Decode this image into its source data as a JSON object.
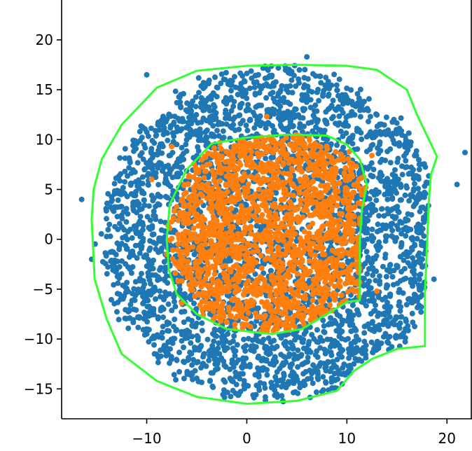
{
  "chart_data": {
    "type": "scatter",
    "title": "",
    "xlabel": "",
    "ylabel": "",
    "xlim": [
      -18.5,
      22.5
    ],
    "ylim": [
      -18,
      24
    ],
    "xticks": [
      -10,
      0,
      10,
      20
    ],
    "yticks": [
      -15,
      -10,
      -5,
      0,
      5,
      10,
      15,
      20
    ],
    "xtick_labels": [
      "−10",
      "0",
      "10",
      "20"
    ],
    "ytick_labels": [
      "−15",
      "−10",
      "−5",
      "0",
      "5",
      "10",
      "15",
      "20"
    ],
    "grid": false,
    "legend": "none",
    "series": [
      {
        "kind": "point-cloud",
        "color": "#1f77b4",
        "center": [
          2.5,
          0.5
        ],
        "spread": [
          8,
          8
        ],
        "count": 3500,
        "sample_points": [
          [
            -16.5,
            4
          ],
          [
            -15.5,
            -2
          ],
          [
            21.8,
            8.7
          ],
          [
            18.7,
            -4
          ],
          [
            21,
            5.5
          ],
          [
            3.6,
            -16.2
          ],
          [
            -10,
            16.5
          ],
          [
            6,
            18.3
          ]
        ]
      },
      {
        "kind": "point-cloud",
        "color": "#ff7f0e",
        "center": [
          3,
          0.5
        ],
        "spread": [
          5,
          5
        ],
        "count": 1800,
        "sample_points": [
          [
            -7.5,
            9.3
          ],
          [
            2,
            12.3
          ],
          [
            -9.5,
            6
          ],
          [
            12.5,
            8.4
          ],
          [
            13,
            -5.2
          ],
          [
            -8,
            -1.5
          ],
          [
            -6.5,
            -6.4
          ],
          [
            3,
            -9
          ]
        ]
      },
      {
        "kind": "boundary",
        "color": "#33ff33",
        "points": [
          [
            -15.5,
            2
          ],
          [
            -15.2,
            -4
          ],
          [
            -14,
            -8
          ],
          [
            -12.5,
            -11.5
          ],
          [
            -9,
            -14.2
          ],
          [
            -5,
            -15.8
          ],
          [
            0,
            -16.5
          ],
          [
            5,
            -16.2
          ],
          [
            9,
            -15.2
          ],
          [
            10.7,
            -13.2
          ],
          [
            12.5,
            -12
          ],
          [
            15,
            -11
          ],
          [
            17.8,
            -10.7
          ],
          [
            17.8,
            -5.5
          ],
          [
            18.2,
            4
          ],
          [
            18.4,
            6.5
          ],
          [
            19,
            8.3
          ],
          [
            17,
            12.5
          ],
          [
            16,
            15
          ],
          [
            13,
            17
          ],
          [
            10,
            17.4
          ],
          [
            5,
            17.5
          ],
          [
            0,
            17.4
          ],
          [
            -5,
            16.9
          ],
          [
            -9,
            15.2
          ],
          [
            -12.5,
            11.5
          ],
          [
            -14.5,
            8
          ],
          [
            -15.3,
            5
          ],
          [
            -15.5,
            2
          ]
        ]
      },
      {
        "kind": "boundary",
        "color": "#33ff33",
        "points": [
          [
            -8,
            0
          ],
          [
            -7.8,
            -3
          ],
          [
            -7,
            -5.5
          ],
          [
            -5,
            -7.5
          ],
          [
            -2,
            -9
          ],
          [
            2.5,
            -9.5
          ],
          [
            5.5,
            -9
          ],
          [
            8,
            -7.5
          ],
          [
            10,
            -6.3
          ],
          [
            11.3,
            -6.1
          ],
          [
            11.3,
            0
          ],
          [
            11.5,
            3
          ],
          [
            12,
            5.5
          ],
          [
            11.3,
            8
          ],
          [
            10,
            9.5
          ],
          [
            8,
            10.4
          ],
          [
            4,
            10.5
          ],
          [
            0,
            10.2
          ],
          [
            -3.5,
            9.6
          ],
          [
            -6,
            7
          ],
          [
            -7.7,
            3.5
          ],
          [
            -8,
            0
          ]
        ]
      }
    ]
  }
}
